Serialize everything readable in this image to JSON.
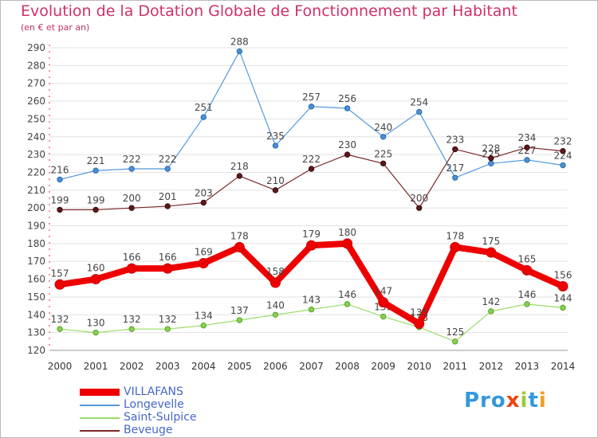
{
  "title": "Evolution de la Dotation Globale de Fonctionnement par Habitant",
  "subtitle": "(en € et par an)",
  "logo": "Proxiti",
  "chart_data": {
    "type": "line",
    "x": [
      2000,
      2001,
      2002,
      2003,
      2004,
      2005,
      2006,
      2007,
      2008,
      2009,
      2010,
      2011,
      2012,
      2013,
      2014
    ],
    "ylim": [
      120,
      290
    ],
    "yticks": [
      120,
      130,
      140,
      150,
      160,
      170,
      180,
      190,
      200,
      210,
      220,
      230,
      240,
      250,
      260,
      270,
      280,
      290
    ],
    "grid": "horizontal",
    "series": [
      {
        "name": "Longevelle",
        "color": "#5599dd",
        "values": [
          216,
          221,
          222,
          222,
          251,
          288,
          235,
          257,
          256,
          240,
          254,
          217,
          225,
          227,
          224
        ]
      },
      {
        "name": "Beveuge",
        "color": "#7a2828",
        "values": [
          199,
          199,
          200,
          201,
          203,
          218,
          210,
          222,
          230,
          225,
          200,
          233,
          228,
          234,
          232
        ]
      },
      {
        "name": "Saint-Sulpice",
        "color": "#99dd66",
        "values": [
          132,
          130,
          132,
          132,
          134,
          137,
          140,
          143,
          146,
          139,
          133,
          125,
          142,
          146,
          144
        ]
      },
      {
        "name": "VILLAFANS",
        "color": "#ee0000",
        "values": [
          157,
          160,
          166,
          166,
          169,
          178,
          158,
          179,
          180,
          147,
          135,
          178,
          175,
          165,
          156
        ]
      }
    ]
  },
  "legend": [
    {
      "name": "VILLAFANS",
      "color": "#ee0000"
    },
    {
      "name": "Longevelle",
      "color": "#5599dd"
    },
    {
      "name": "Saint-Sulpice",
      "color": "#99dd66"
    },
    {
      "name": "Beveuge",
      "color": "#7a2828"
    }
  ]
}
